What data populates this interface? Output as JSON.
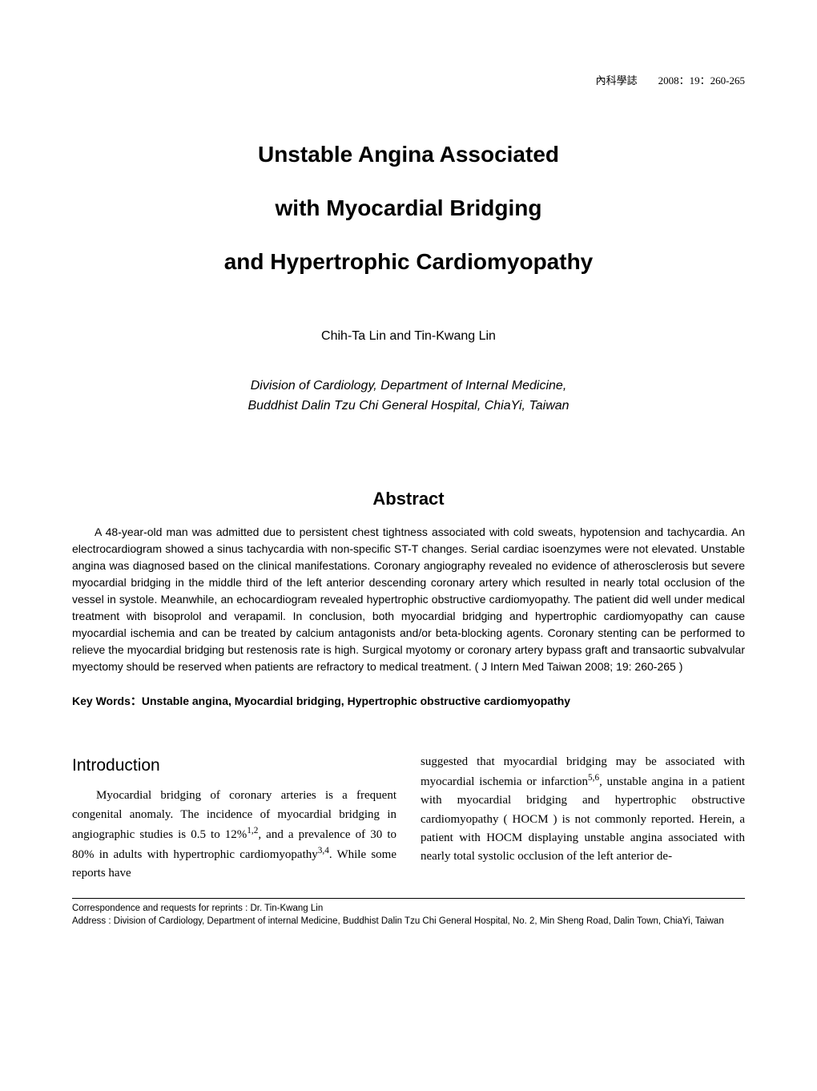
{
  "header_citation": "內科學誌　　2008：19：260-265",
  "title": {
    "line1": "Unstable Angina Associated",
    "line2": "with Myocardial Bridging",
    "line3": "and Hypertrophic Cardiomyopathy"
  },
  "authors": "Chih-Ta Lin and Tin-Kwang Lin",
  "affiliation": {
    "line1": "Division of Cardiology, Department of Internal Medicine,",
    "line2": "Buddhist Dalin Tzu Chi General Hospital, ChiaYi, Taiwan"
  },
  "abstract": {
    "heading": "Abstract",
    "text": "A 48-year-old man was admitted due to persistent chest tightness associated with cold sweats, hypotension and tachycardia. An electrocardiogram showed a sinus tachycardia with non-specific ST-T changes. Serial cardiac isoenzymes were not elevated. Unstable angina was diagnosed based on the clinical manifestations. Coronary angiography revealed no evidence of atherosclerosis but severe myocardial bridging in the middle third of the left anterior descending coronary artery which resulted in nearly total occlusion of the vessel in systole. Meanwhile, an echocardiogram revealed hypertrophic obstructive cardiomyopathy. The patient did well under medical treatment with bisoprolol and verapamil. In conclusion, both myocardial bridging and hypertrophic cardiomyopathy can cause myocardial ischemia and can be treated by calcium antagonists and/or beta-blocking agents. Coronary stenting can be performed to relieve the myocardial bridging but restenosis rate is high. Surgical myotomy or coronary artery bypass graft and transaortic subvalvular myectomy should be reserved when patients are refractory to medical treatment. ( J Intern Med Taiwan 2008; 19: 260-265 )"
  },
  "keywords_label": "Key Words：",
  "keywords_value": "Unstable angina, Myocardial bridging, Hypertrophic obstructive cardiomyopathy",
  "introduction": {
    "heading": "Introduction",
    "left_para_pre": "Myocardial bridging of coronary arteries is a frequent congenital anomaly. The incidence of myocardial bridging in angiographic studies is 0.5 to 12%",
    "sup1": "1,2",
    "left_para_mid": ", and a prevalence of 30 to 80% in adults with hypertrophic cardiomyopathy",
    "sup2": "3,4",
    "left_para_post": ". While some reports have",
    "right_para_pre": "suggested that myocardial bridging may be associated with myocardial ischemia or infarction",
    "sup3": "5,6",
    "right_para_post": ", unstable angina in a patient with myocardial bridging and hypertrophic obstructive cardiomyopathy ( HOCM ) is not commonly reported. Herein, a patient with HOCM displaying unstable angina associated with nearly total systolic occlusion of the left anterior de-"
  },
  "footer": {
    "correspondence": "Correspondence and requests for reprints : Dr. Tin-Kwang Lin",
    "address": "Address : Division of Cardiology, Department of internal Medicine, Buddhist Dalin Tzu Chi General Hospital, No. 2, Min Sheng Road, Dalin Town, ChiaYi, Taiwan"
  },
  "styling": {
    "background_color": "#ffffff",
    "text_color": "#000000",
    "title_fontsize": 28,
    "title_lineheight": 2.4,
    "authors_fontsize": 16,
    "affiliation_fontsize": 16,
    "abstract_heading_fontsize": 22,
    "abstract_text_fontsize": 14,
    "keywords_fontsize": 14,
    "section_heading_fontsize": 21,
    "body_fontsize": 15,
    "footer_fontsize": 11.5,
    "column_gap": 30,
    "page_padding": [
      90,
      90,
      50,
      90
    ]
  }
}
